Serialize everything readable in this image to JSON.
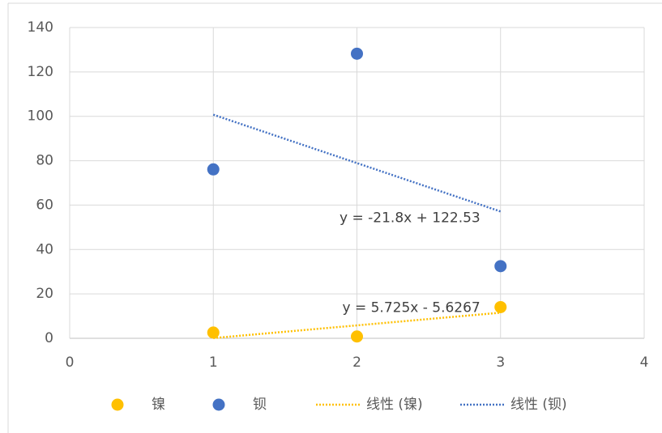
{
  "chart_data": {
    "type": "scatter",
    "x": [
      1,
      2,
      3
    ],
    "series": [
      {
        "name": "镍",
        "color": "#ffc000",
        "values": [
          2.6,
          0.82,
          14.05
        ]
      },
      {
        "name": "钡",
        "color": "#4472c4",
        "values": [
          76.1,
          128.2,
          32.5
        ]
      }
    ],
    "trendlines": [
      {
        "name": "线性 (镍)",
        "series": 0,
        "color": "#ffc000",
        "slope": 5.725,
        "intercept": -5.6267,
        "label": "y = 5.725x - 5.6267"
      },
      {
        "name": "线性 (钡)",
        "series": 1,
        "color": "#4472c4",
        "slope": -21.8,
        "intercept": 122.53,
        "label": "y = -21.8x + 122.53"
      }
    ],
    "xlim": [
      0,
      4
    ],
    "xticks": [
      0,
      1,
      2,
      3,
      4
    ],
    "ylim": [
      0,
      140
    ],
    "yticks": [
      0,
      20,
      40,
      60,
      80,
      100,
      120,
      140
    ],
    "grid": true,
    "legend": "bottom"
  }
}
